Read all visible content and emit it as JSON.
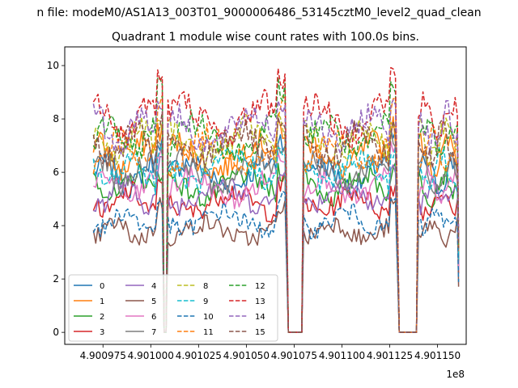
{
  "figure": {
    "suptitle": "n file: modeM0/AS1A13_003T01_9000006486_53145cztM0_level2_quad_clean",
    "title": "Quadrant 1 module wise count rates with 100.0s bins.",
    "offset_label": "1e8"
  },
  "chart_data": {
    "type": "line",
    "title": "Quadrant 1 module wise count rates with 100.0s bins.",
    "xlabel": "",
    "ylabel": "",
    "xlim": [
      4.900955,
      4.901165
    ],
    "ylim": [
      -0.45,
      10.7
    ],
    "x_offset": "1e8",
    "x_tick_labels": [
      "4.900975",
      "4.901000",
      "4.901025",
      "4.901050",
      "4.901075",
      "4.901100",
      "4.901125",
      "4.901150"
    ],
    "x_ticks": [
      4.900975,
      4.901,
      4.901025,
      4.90105,
      4.901075,
      4.9011,
      4.901125,
      4.90115
    ],
    "y_ticks": [
      0,
      2,
      4,
      6,
      8,
      10
    ],
    "grid": false,
    "legend": {
      "position": "lower-left",
      "columns": 4
    },
    "segments": [
      {
        "x_start": 4.90097,
        "x_end": 4.901006
      },
      {
        "x_start": 4.901009,
        "x_end": 4.901071
      },
      {
        "x_start": 4.90108,
        "x_end": 4.901129
      },
      {
        "x_start": 4.90114,
        "x_end": 4.901161
      }
    ],
    "gaps": [
      {
        "x_start": 4.901007,
        "x_end": 4.901008,
        "value": 0
      },
      {
        "x_start": 4.901072,
        "x_end": 4.901079,
        "value": 0
      },
      {
        "x_start": 4.90113,
        "x_end": 4.901139,
        "value": 0
      }
    ],
    "series": [
      {
        "name": "0",
        "color": "#1f77b4",
        "dash": "solid",
        "level": 5.9
      },
      {
        "name": "1",
        "color": "#ff7f0e",
        "dash": "solid",
        "level": 6.6
      },
      {
        "name": "2",
        "color": "#2ca02c",
        "dash": "solid",
        "level": 5.5
      },
      {
        "name": "3",
        "color": "#d62728",
        "dash": "solid",
        "level": 4.9
      },
      {
        "name": "4",
        "color": "#9467bd",
        "dash": "solid",
        "level": 5.2
      },
      {
        "name": "5",
        "color": "#8c564b",
        "dash": "solid",
        "level": 3.8
      },
      {
        "name": "6",
        "color": "#e377c2",
        "dash": "solid",
        "level": 5.4
      },
      {
        "name": "7",
        "color": "#7f7f7f",
        "dash": "solid",
        "level": 6.0
      },
      {
        "name": "8",
        "color": "#bcbd22",
        "dash": "dashed",
        "level": 7.1
      },
      {
        "name": "9",
        "color": "#17becf",
        "dash": "dashed",
        "level": 6.1
      },
      {
        "name": "10",
        "color": "#1f77b4",
        "dash": "dashed",
        "level": 4.2
      },
      {
        "name": "11",
        "color": "#ff7f0e",
        "dash": "dashed",
        "level": 6.8
      },
      {
        "name": "12",
        "color": "#2ca02c",
        "dash": "dashed",
        "level": 7.3
      },
      {
        "name": "13",
        "color": "#d62728",
        "dash": "dashed",
        "level": 8.0
      },
      {
        "name": "14",
        "color": "#9467bd",
        "dash": "dashed",
        "level": 7.6
      },
      {
        "name": "15",
        "color": "#8c564b",
        "dash": "dashed",
        "level": 7.0
      }
    ]
  }
}
